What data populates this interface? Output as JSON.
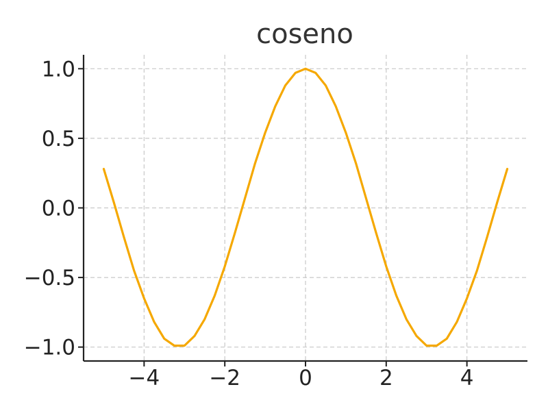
{
  "chart_data": {
    "type": "line",
    "title": "coseno",
    "xlabel": "",
    "ylabel": "",
    "xlim": [
      -5.5,
      5.5
    ],
    "ylim": [
      -1.1,
      1.1
    ],
    "grid": true,
    "x_ticks": [
      -4,
      -2,
      0,
      2,
      4
    ],
    "x_tick_labels": [
      "−4",
      "−2",
      "0",
      "2",
      "4"
    ],
    "y_ticks": [
      -1.0,
      -0.5,
      0.0,
      0.5,
      1.0
    ],
    "y_tick_labels": [
      "−1.0",
      "−0.5",
      "0.0",
      "0.5",
      "1.0"
    ],
    "series": [
      {
        "color": "#F5A800",
        "x": [
          -5.0,
          -4.75,
          -4.5,
          -4.25,
          -4.0,
          -3.75,
          -3.5,
          -3.25,
          -3.0,
          -2.75,
          -2.5,
          -2.25,
          -2.0,
          -1.75,
          -1.5,
          -1.25,
          -1.0,
          -0.75,
          -0.5,
          -0.25,
          0.0,
          0.25,
          0.5,
          0.75,
          1.0,
          1.25,
          1.5,
          1.75,
          2.0,
          2.25,
          2.5,
          2.75,
          3.0,
          3.25,
          3.5,
          3.75,
          4.0,
          4.25,
          4.5,
          4.75,
          5.0
        ],
        "y": [
          0.28,
          0.04,
          -0.21,
          -0.45,
          -0.65,
          -0.82,
          -0.94,
          -0.99,
          -0.99,
          -0.92,
          -0.8,
          -0.63,
          -0.42,
          -0.18,
          0.07,
          0.32,
          0.54,
          0.73,
          0.88,
          0.97,
          1.0,
          0.97,
          0.88,
          0.73,
          0.54,
          0.32,
          0.07,
          -0.18,
          -0.42,
          -0.63,
          -0.8,
          -0.92,
          -0.99,
          -0.99,
          -0.94,
          -0.82,
          -0.65,
          -0.45,
          -0.21,
          0.04,
          0.28
        ]
      }
    ]
  }
}
